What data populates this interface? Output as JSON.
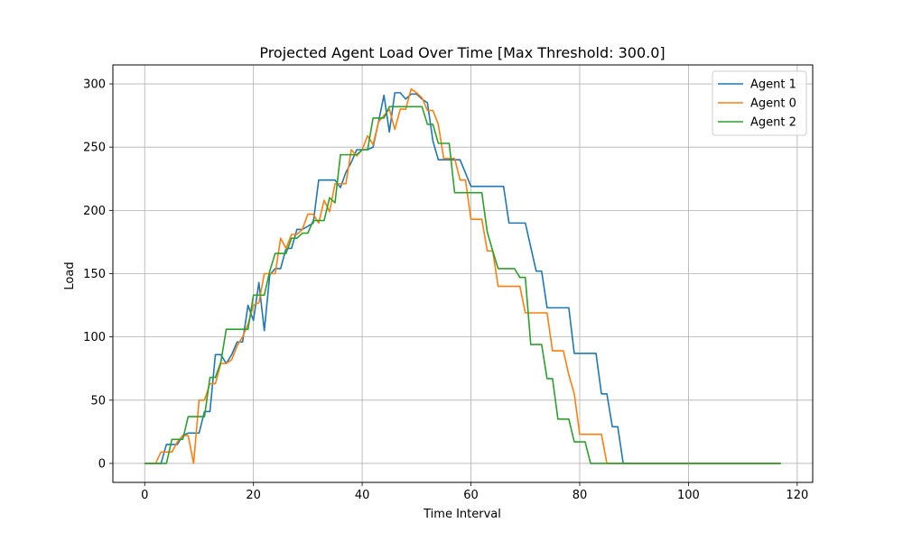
{
  "chart_data": {
    "type": "line",
    "title": "Projected Agent Load Over Time [Max Threshold: 300.0]",
    "xlabel": "Time Interval",
    "ylabel": "Load",
    "xlim": [
      -5.85,
      122.85
    ],
    "ylim": [
      -15,
      315
    ],
    "xticks": [
      0,
      20,
      40,
      60,
      80,
      100,
      120
    ],
    "yticks": [
      0,
      50,
      100,
      150,
      200,
      250,
      300
    ],
    "grid": true,
    "legend_position": "top-right",
    "series": [
      {
        "name": "Agent 1",
        "color": "#1f77b4",
        "points": [
          [
            0,
            0
          ],
          [
            3,
            0
          ],
          [
            4,
            15
          ],
          [
            6,
            15
          ],
          [
            7,
            22
          ],
          [
            8,
            24
          ],
          [
            10,
            24
          ],
          [
            11,
            41
          ],
          [
            12,
            41
          ],
          [
            13,
            86
          ],
          [
            14,
            86
          ],
          [
            15,
            79
          ],
          [
            16,
            86
          ],
          [
            17,
            96
          ],
          [
            18,
            96
          ],
          [
            19,
            125
          ],
          [
            20,
            113
          ],
          [
            21,
            143
          ],
          [
            22,
            105
          ],
          [
            23,
            149
          ],
          [
            24,
            154
          ],
          [
            25,
            154
          ],
          [
            26,
            170
          ],
          [
            27,
            170
          ],
          [
            28,
            185
          ],
          [
            29,
            185
          ],
          [
            31,
            190
          ],
          [
            32,
            224
          ],
          [
            33,
            224
          ],
          [
            35,
            224
          ],
          [
            36,
            218
          ],
          [
            37,
            230
          ],
          [
            38,
            238
          ],
          [
            39,
            248
          ],
          [
            40,
            248
          ],
          [
            41,
            248
          ],
          [
            42,
            250
          ],
          [
            43,
            270
          ],
          [
            44,
            291
          ],
          [
            45,
            262
          ],
          [
            46,
            293
          ],
          [
            47,
            293
          ],
          [
            48,
            288
          ],
          [
            49,
            292
          ],
          [
            50,
            292
          ],
          [
            51,
            288
          ],
          [
            52,
            285
          ],
          [
            53,
            255
          ],
          [
            54,
            240
          ],
          [
            56,
            240
          ],
          [
            58,
            240
          ],
          [
            60,
            219
          ],
          [
            66,
            219
          ],
          [
            67,
            190
          ],
          [
            70,
            190
          ],
          [
            72,
            152
          ],
          [
            73,
            152
          ],
          [
            74,
            123
          ],
          [
            78,
            123
          ],
          [
            79,
            87
          ],
          [
            83,
            87
          ],
          [
            84,
            55
          ],
          [
            85,
            55
          ],
          [
            86,
            29
          ],
          [
            87,
            29
          ],
          [
            88,
            0
          ],
          [
            117,
            0
          ]
        ]
      },
      {
        "name": "Agent 0",
        "color": "#ff7f0e",
        "points": [
          [
            0,
            0
          ],
          [
            2,
            0
          ],
          [
            3,
            9
          ],
          [
            4,
            9
          ],
          [
            5,
            9
          ],
          [
            6,
            17
          ],
          [
            7,
            22
          ],
          [
            8,
            22
          ],
          [
            9,
            0
          ],
          [
            10,
            50
          ],
          [
            11,
            50
          ],
          [
            12,
            63
          ],
          [
            13,
            63
          ],
          [
            14,
            79
          ],
          [
            15,
            79
          ],
          [
            16,
            82
          ],
          [
            17,
            93
          ],
          [
            18,
            100
          ],
          [
            19,
            110
          ],
          [
            20,
            125
          ],
          [
            21,
            127
          ],
          [
            22,
            150
          ],
          [
            23,
            150
          ],
          [
            24,
            150
          ],
          [
            25,
            178
          ],
          [
            26,
            170
          ],
          [
            27,
            181
          ],
          [
            28,
            181
          ],
          [
            29,
            185
          ],
          [
            30,
            197
          ],
          [
            31,
            197
          ],
          [
            32,
            190
          ],
          [
            33,
            208
          ],
          [
            34,
            199
          ],
          [
            35,
            221
          ],
          [
            37,
            221
          ],
          [
            38,
            248
          ],
          [
            39,
            243
          ],
          [
            40,
            248
          ],
          [
            41,
            259
          ],
          [
            42,
            252
          ],
          [
            43,
            270
          ],
          [
            44,
            275
          ],
          [
            45,
            280
          ],
          [
            46,
            264
          ],
          [
            47,
            280
          ],
          [
            48,
            280
          ],
          [
            49,
            296
          ],
          [
            50,
            293
          ],
          [
            51,
            289
          ],
          [
            52,
            279
          ],
          [
            53,
            279
          ],
          [
            54,
            268
          ],
          [
            55,
            241
          ],
          [
            57,
            241
          ],
          [
            58,
            224
          ],
          [
            59,
            224
          ],
          [
            60,
            193
          ],
          [
            62,
            193
          ],
          [
            63,
            168
          ],
          [
            64,
            168
          ],
          [
            65,
            140
          ],
          [
            69,
            140
          ],
          [
            70,
            119
          ],
          [
            74,
            119
          ],
          [
            75,
            89
          ],
          [
            77,
            89
          ],
          [
            78,
            70
          ],
          [
            79,
            55
          ],
          [
            80,
            23
          ],
          [
            84,
            23
          ],
          [
            85,
            0
          ],
          [
            117,
            0
          ]
        ]
      },
      {
        "name": "Agent 2",
        "color": "#2ca02c",
        "points": [
          [
            0,
            0
          ],
          [
            4,
            0
          ],
          [
            5,
            19
          ],
          [
            6,
            19
          ],
          [
            7,
            19
          ],
          [
            8,
            37
          ],
          [
            10,
            37
          ],
          [
            11,
            37
          ],
          [
            12,
            68
          ],
          [
            13,
            68
          ],
          [
            14,
            80
          ],
          [
            15,
            106
          ],
          [
            18,
            106
          ],
          [
            19,
            106
          ],
          [
            20,
            133
          ],
          [
            22,
            133
          ],
          [
            23,
            152
          ],
          [
            24,
            166
          ],
          [
            26,
            166
          ],
          [
            27,
            178
          ],
          [
            28,
            178
          ],
          [
            29,
            182
          ],
          [
            30,
            182
          ],
          [
            31,
            192
          ],
          [
            32,
            192
          ],
          [
            33,
            192
          ],
          [
            34,
            210
          ],
          [
            35,
            206
          ],
          [
            36,
            244
          ],
          [
            38,
            244
          ],
          [
            39,
            244
          ],
          [
            40,
            248
          ],
          [
            41,
            248
          ],
          [
            42,
            273
          ],
          [
            43,
            273
          ],
          [
            44,
            273
          ],
          [
            45,
            282
          ],
          [
            46,
            282
          ],
          [
            48,
            282
          ],
          [
            50,
            282
          ],
          [
            51,
            282
          ],
          [
            52,
            268
          ],
          [
            53,
            268
          ],
          [
            54,
            253
          ],
          [
            56,
            253
          ],
          [
            57,
            214
          ],
          [
            59,
            214
          ],
          [
            62,
            214
          ],
          [
            63,
            183
          ],
          [
            64,
            168
          ],
          [
            65,
            154
          ],
          [
            68,
            154
          ],
          [
            69,
            147
          ],
          [
            70,
            147
          ],
          [
            71,
            94
          ],
          [
            73,
            94
          ],
          [
            74,
            67
          ],
          [
            75,
            67
          ],
          [
            76,
            35
          ],
          [
            78,
            35
          ],
          [
            79,
            17
          ],
          [
            81,
            17
          ],
          [
            82,
            0
          ],
          [
            117,
            0
          ]
        ]
      }
    ]
  }
}
